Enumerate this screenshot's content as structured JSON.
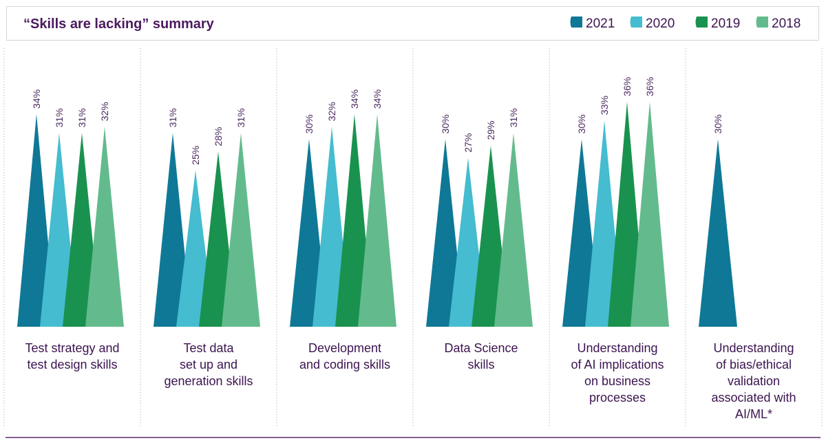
{
  "chart_data": {
    "type": "bar",
    "title": "“Skills are lacking” summary",
    "unit": "%",
    "ylim": [
      0,
      40
    ],
    "legend_position": "top-right",
    "series_order": [
      "2021",
      "2020",
      "2019",
      "2018"
    ],
    "series_colors": {
      "2021": "#0f7896",
      "2020": "#45bcd0",
      "2019": "#1a924f",
      "2018": "#63bb8d"
    },
    "groups": [
      {
        "label_lines": [
          "Test strategy and",
          "test design skills"
        ],
        "values": [
          {
            "year": "2021",
            "value": 34,
            "label": "34%"
          },
          {
            "year": "2020",
            "value": 31,
            "label": "31%"
          },
          {
            "year": "2019",
            "value": 31,
            "label": "31%"
          },
          {
            "year": "2018",
            "value": 32,
            "label": "32%"
          }
        ]
      },
      {
        "label_lines": [
          "Test data",
          "set up and",
          "generation skills"
        ],
        "values": [
          {
            "year": "2021",
            "value": 31,
            "label": "31%"
          },
          {
            "year": "2020",
            "value": 25,
            "label": "25%"
          },
          {
            "year": "2019",
            "value": 28,
            "label": "28%"
          },
          {
            "year": "2018",
            "value": 31,
            "label": "31%"
          }
        ]
      },
      {
        "label_lines": [
          "Development",
          "and coding skills"
        ],
        "values": [
          {
            "year": "2021",
            "value": 30,
            "label": "30%"
          },
          {
            "year": "2020",
            "value": 32,
            "label": "32%"
          },
          {
            "year": "2019",
            "value": 34,
            "label": "34%"
          },
          {
            "year": "2018",
            "value": 34,
            "label": "34%"
          }
        ]
      },
      {
        "label_lines": [
          "Data Science",
          "skills"
        ],
        "values": [
          {
            "year": "2021",
            "value": 30,
            "label": "30%"
          },
          {
            "year": "2020",
            "value": 27,
            "label": "27%"
          },
          {
            "year": "2019",
            "value": 29,
            "label": "29%"
          },
          {
            "year": "2018",
            "value": 31,
            "label": "31%"
          }
        ]
      },
      {
        "label_lines": [
          "Understanding",
          "of AI implications",
          "on business",
          "processes"
        ],
        "values": [
          {
            "year": "2021",
            "value": 30,
            "label": "30%"
          },
          {
            "year": "2020",
            "value": 33,
            "label": "33%"
          },
          {
            "year": "2019",
            "value": 36,
            "label": "36%"
          },
          {
            "year": "2018",
            "value": 36,
            "label": "36%"
          }
        ]
      },
      {
        "label_lines": [
          "Understanding",
          "of bias/ethical",
          "validation",
          "associated with",
          "AI/ML*"
        ],
        "values": [
          {
            "year": "2021",
            "value": 30,
            "label": "30%"
          }
        ]
      }
    ]
  },
  "colors": {
    "title": "#4b1a5e",
    "text": "#3c1450",
    "label": "#4b2a5e",
    "rule": "#5b2a73",
    "divider": "#b9b9b9",
    "box_border": "#d4d4d4"
  }
}
